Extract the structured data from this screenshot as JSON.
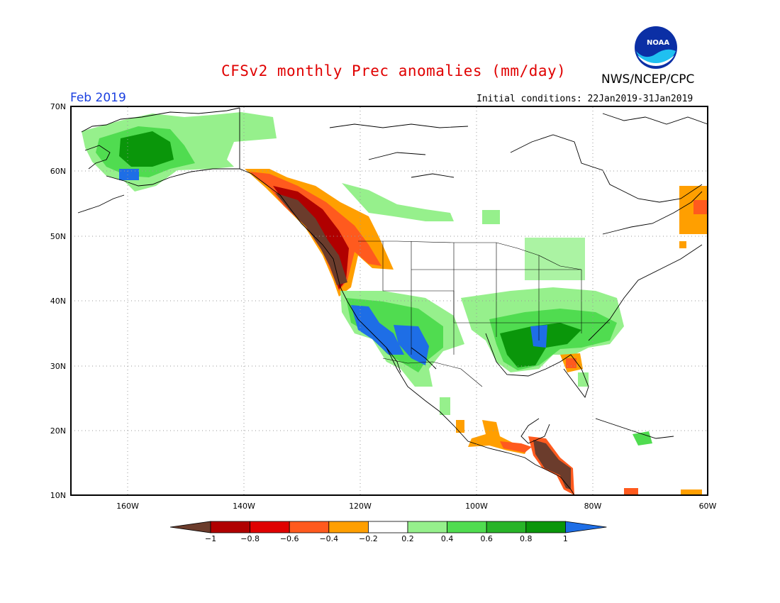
{
  "header": {
    "title": "CFSv2 monthly Prec anomalies (mm/day)",
    "agency": "NWS/NCEP/CPC",
    "month": "Feb 2019",
    "initial_conditions": "Initial conditions: 22Jan2019-31Jan2019"
  },
  "logo": {
    "icon": "noaa-logo-icon"
  },
  "axes": {
    "lat_labels": [
      "70N",
      "60N",
      "50N",
      "40N",
      "30N",
      "20N",
      "10N"
    ],
    "lon_labels": [
      "160W",
      "140W",
      "120W",
      "100W",
      "80W",
      "60W"
    ]
  },
  "colorbar": {
    "labels": [
      "−1",
      "−0.8",
      "−0.6",
      "−0.4",
      "−0.2",
      "0.2",
      "0.4",
      "0.6",
      "0.8",
      "1"
    ],
    "colors": [
      "#6b3c2c",
      "#b00000",
      "#e00000",
      "#ff5a1e",
      "#ff9f00",
      "#ffffff",
      "#96f08c",
      "#50dc50",
      "#28b428",
      "#0a960a",
      "#1e6ee6"
    ]
  }
}
